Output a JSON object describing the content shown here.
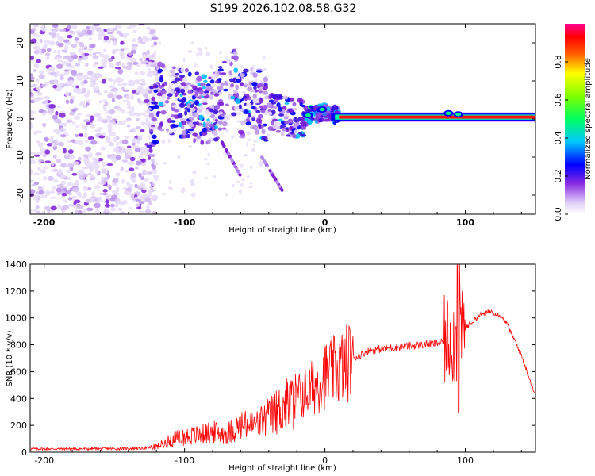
{
  "chart_data": [
    {
      "type": "heatmap",
      "title": "S199.2026.102.08.58.G32",
      "xlabel": "Height of straight line (km)",
      "ylabel": "Frequency (Hz)",
      "xlim": [
        -210,
        150
      ],
      "ylim": [
        -25,
        25
      ],
      "xticks": [
        -200,
        -100,
        0,
        100
      ],
      "xtick_labels": [
        "-200",
        "-100",
        "0",
        "100"
      ],
      "yticks": [
        -20,
        -10,
        0,
        10,
        20
      ],
      "ytick_labels": [
        "-20",
        "-10",
        "0",
        "10",
        "20"
      ],
      "colorbar": {
        "label": "Normalized spectral amplitude",
        "range": [
          0,
          1
        ],
        "ticks": [
          0,
          0.2,
          0.4,
          0.6,
          0.8
        ],
        "tick_labels": [
          "0.0",
          "0.2",
          "0.4",
          "0.6",
          "0.8"
        ],
        "colors": [
          "#ffffff",
          "#d8c8f4",
          "#8a2be2",
          "#0000ff",
          "#00ffff",
          "#00ff00",
          "#ffff00",
          "#ff8000",
          "#ff0000",
          "#ff00aa"
        ]
      },
      "description_values": {
        "noise_region_km": [
          -210,
          -125
        ],
        "scatter_ridge": [
          [
            -120,
            6
          ],
          [
            -100,
            4
          ],
          [
            -80,
            2
          ],
          [
            -65,
            10
          ],
          [
            -60,
            4
          ],
          [
            -50,
            6
          ],
          [
            -40,
            2
          ],
          [
            -30,
            1
          ],
          [
            -20,
            0
          ],
          [
            -10,
            1
          ],
          [
            0,
            2
          ],
          [
            10,
            0.5
          ]
        ],
        "strong_line_frequency_hz": 0.5,
        "strong_line_km": [
          10,
          150
        ]
      }
    },
    {
      "type": "line",
      "xlabel": "Height of straight line (km)",
      "ylabel": "SNR (10 * v/v)",
      "xlim": [
        -210,
        150
      ],
      "ylim": [
        0,
        1400
      ],
      "xticks": [
        -200,
        -100,
        0,
        100
      ],
      "xtick_labels": [
        "-200",
        "-100",
        "0",
        "100"
      ],
      "yticks": [
        0,
        200,
        400,
        600,
        800,
        1000,
        1200,
        1400
      ],
      "ytick_labels": [
        "0",
        "200",
        "400",
        "600",
        "800",
        "1000",
        "1200",
        "1400"
      ],
      "series": [
        {
          "name": "SNR",
          "color": "#ff0000",
          "x": [
            -210,
            -180,
            -150,
            -130,
            -120,
            -110,
            -100,
            -90,
            -80,
            -70,
            -60,
            -50,
            -40,
            -30,
            -20,
            -10,
            0,
            10,
            20,
            30,
            40,
            50,
            60,
            70,
            80,
            85,
            90,
            95,
            100,
            110,
            118,
            125,
            130,
            140,
            150
          ],
          "y": [
            25,
            25,
            25,
            30,
            40,
            90,
            120,
            130,
            150,
            140,
            200,
            200,
            260,
            340,
            400,
            470,
            570,
            620,
            700,
            750,
            770,
            780,
            790,
            800,
            810,
            820,
            860,
            800,
            920,
            1020,
            1050,
            1020,
            950,
            720,
            420
          ]
        }
      ]
    }
  ]
}
